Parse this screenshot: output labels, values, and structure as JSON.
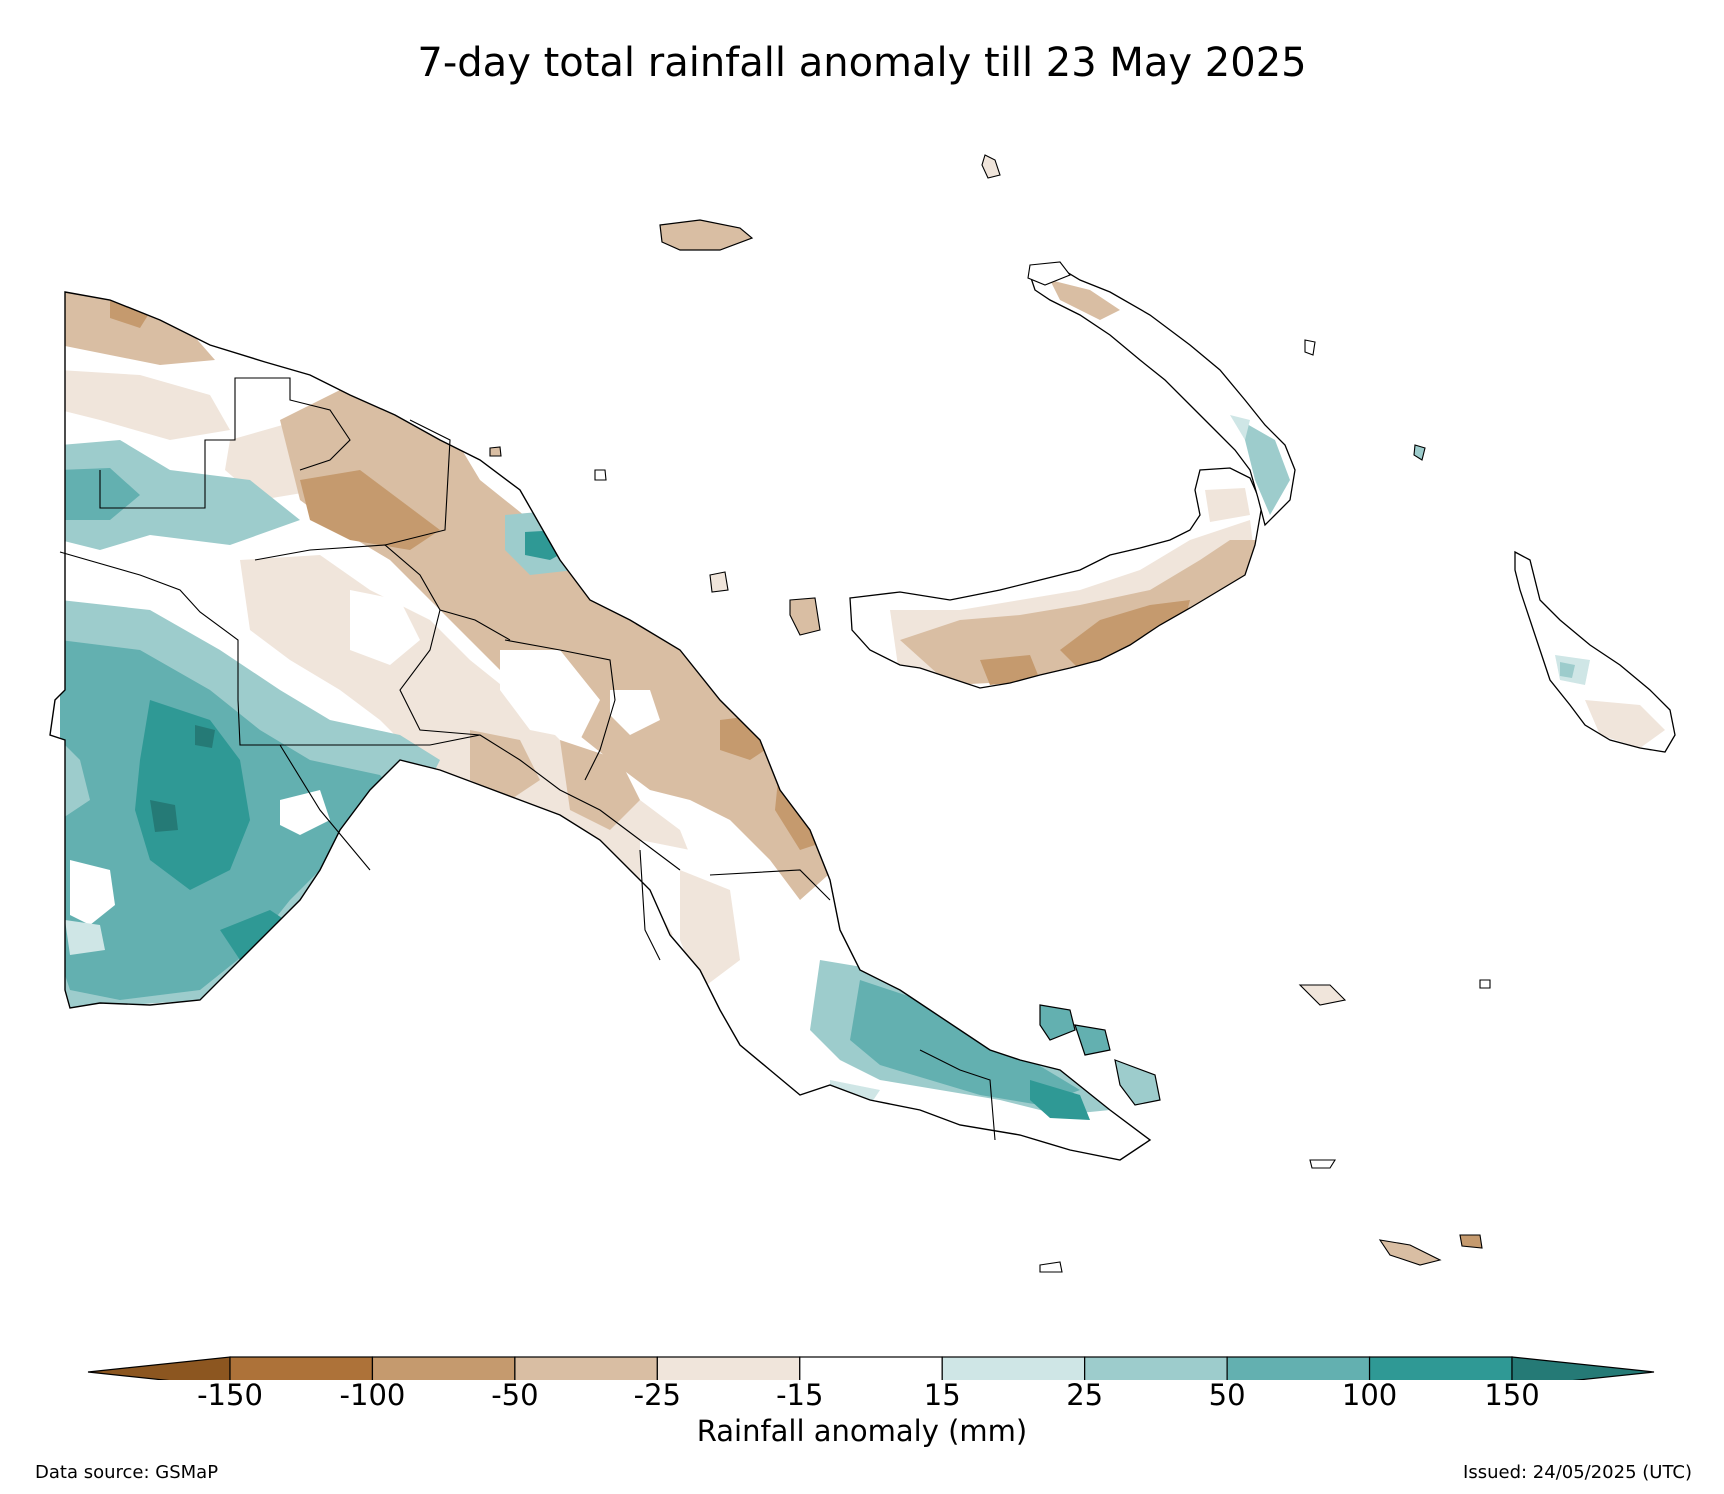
{
  "title": "7-day total rainfall anomaly till 23 May 2025",
  "colorbar": {
    "label": "Rainfall anomaly (mm)",
    "ticks": [
      "-150",
      "-100",
      "-50",
      "-25",
      "-15",
      "15",
      "25",
      "50",
      "100",
      "150"
    ],
    "colors": {
      "below_min": "#8c5620",
      "bins": [
        "#ad7239",
        "#c59a6e",
        "#d9bea3",
        "#f0e5db",
        "#ffffff",
        "#cfe6e6",
        "#9dcccc",
        "#63b0b0",
        "#2f9995"
      ],
      "above_max": "#257a76"
    }
  },
  "source": "Data source: GSMaP",
  "issued": "Issued: 24/05/2025 (UTC)",
  "map": {
    "region": "Papua New Guinea",
    "palette": {
      "dry_strong": "#c59a6e",
      "dry": "#d9bea3",
      "dry_light": "#f0e5db",
      "neutral": "#ffffff",
      "wet_light": "#cfe6e6",
      "wet": "#9dcccc",
      "wet_strong": "#63b0b0",
      "wet_very": "#2f9995",
      "wet_extreme": "#257a76",
      "outline": "#000000"
    }
  }
}
